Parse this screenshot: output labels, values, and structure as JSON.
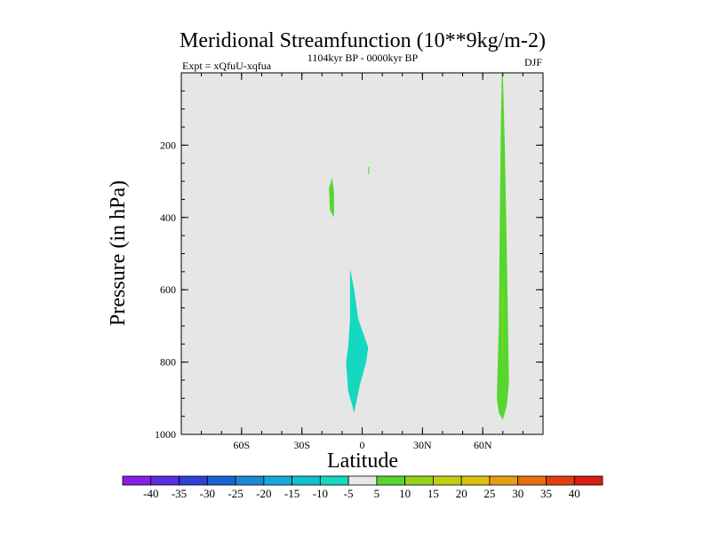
{
  "chart_data": {
    "type": "heatmap",
    "title": "Meridional Streamfunction (10**9kg/m-2)",
    "subtitle": "1104kyr BP - 0000kyr BP",
    "left_label": "Expt = xQfuU-xqfua",
    "right_label": "DJF",
    "xlabel": "Latitude",
    "ylabel": "Pressure (in hPa)",
    "xlim": [
      -90,
      90
    ],
    "ylim": [
      1000,
      0
    ],
    "x_ticks": [
      {
        "value": -60,
        "label": "60S"
      },
      {
        "value": -30,
        "label": "30S"
      },
      {
        "value": 0,
        "label": "0"
      },
      {
        "value": 30,
        "label": "30N"
      },
      {
        "value": 60,
        "label": "60N"
      }
    ],
    "x_minor_step": 10,
    "y_ticks": [
      {
        "value": 200,
        "label": "200"
      },
      {
        "value": 400,
        "label": "400"
      },
      {
        "value": 600,
        "label": "600"
      },
      {
        "value": 800,
        "label": "800"
      },
      {
        "value": 1000,
        "label": "1000"
      }
    ],
    "y_minor_step": 50,
    "background_color": "#e6e6e6",
    "colorbar": {
      "levels": [
        "-40",
        "-35",
        "-30",
        "-25",
        "-20",
        "-15",
        "-10",
        "-5",
        "5",
        "10",
        "15",
        "20",
        "25",
        "30",
        "35",
        "40"
      ],
      "colors": [
        "#8a1ee6",
        "#5a2ee0",
        "#3040d8",
        "#1a64d4",
        "#1a88d6",
        "#15a8d8",
        "#12c0d0",
        "#14d8c0",
        "#e8e8e8",
        "#56d62e",
        "#96d21e",
        "#c0ce14",
        "#dcc010",
        "#e4a010",
        "#e47010",
        "#e04010",
        "#d81e10"
      ]
    },
    "regions": [
      {
        "name": "small-negative-patch-sh",
        "value_range": "-10 to -5",
        "color": "#14d8c0",
        "polygon": [
          [
            -6,
            540
          ],
          [
            -4,
            600
          ],
          [
            -2,
            680
          ],
          [
            3,
            760
          ],
          [
            2,
            800
          ],
          [
            -1,
            860
          ],
          [
            -4,
            940
          ],
          [
            -7,
            880
          ],
          [
            -8,
            800
          ],
          [
            -7,
            760
          ],
          [
            -6,
            680
          ]
        ]
      },
      {
        "name": "positive-patch-20s",
        "value_range": "5 to 10",
        "color": "#56d62e",
        "polygon": [
          [
            -15,
            290
          ],
          [
            -14,
            330
          ],
          [
            -14,
            400
          ],
          [
            -16,
            380
          ],
          [
            -16.5,
            320
          ]
        ]
      },
      {
        "name": "tiny-positive-patch-eq",
        "value_range": "5 to 10",
        "color": "#56d62e",
        "polygon": [
          [
            3,
            260
          ],
          [
            3.5,
            260
          ],
          [
            3.5,
            280
          ],
          [
            3,
            280
          ]
        ]
      },
      {
        "name": "positive-band-65n",
        "value_range": "5 to 10",
        "color": "#56d62e",
        "polygon": [
          [
            70,
            0
          ],
          [
            71,
            200
          ],
          [
            72,
            500
          ],
          [
            73,
            860
          ],
          [
            72,
            920
          ],
          [
            70,
            960
          ],
          [
            68,
            940
          ],
          [
            67,
            900
          ],
          [
            68,
            700
          ],
          [
            68.5,
            400
          ],
          [
            69,
            150
          ],
          [
            69.5,
            0
          ]
        ]
      },
      {
        "name": "positive-core-65n",
        "value_range": "10 to 15",
        "color": "#96d21e",
        "polygon": [
          [
            69.8,
            560
          ],
          [
            70.2,
            620
          ],
          [
            70.1,
            760
          ],
          [
            69.6,
            820
          ],
          [
            69.5,
            700
          ],
          [
            69.7,
            600
          ]
        ]
      }
    ]
  }
}
